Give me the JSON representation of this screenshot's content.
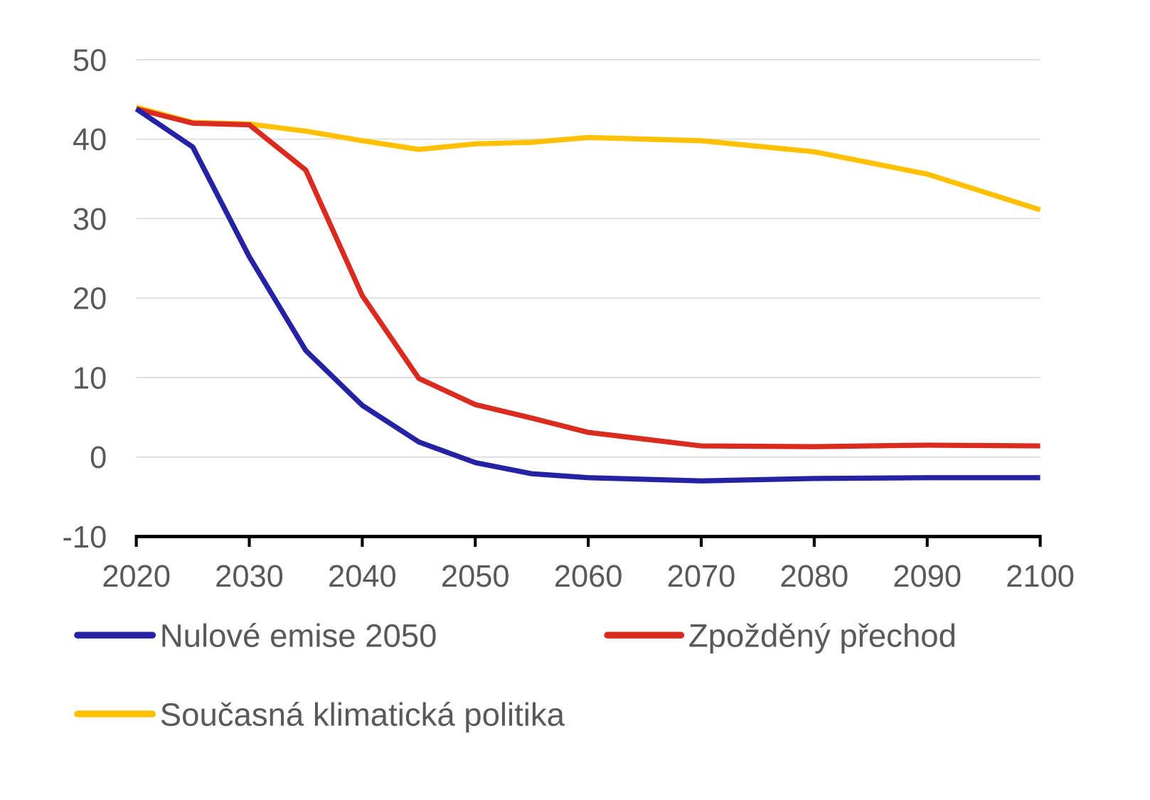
{
  "chart_data": {
    "type": "line",
    "title": "",
    "xlabel": "",
    "ylabel": "",
    "xlim": [
      2020,
      2100
    ],
    "ylim": [
      -10,
      50
    ],
    "yticks": [
      -10,
      0,
      10,
      20,
      30,
      40,
      50
    ],
    "xticks": [
      2020,
      2030,
      2040,
      2050,
      2060,
      2070,
      2080,
      2090,
      2100
    ],
    "grid": true,
    "legend_placement": "bottom",
    "x": [
      2020,
      2025,
      2030,
      2035,
      2040,
      2045,
      2050,
      2055,
      2060,
      2070,
      2080,
      2090,
      2100
    ],
    "series": [
      {
        "name": "Nulové emise 2050",
        "color": "#2622A4",
        "values": [
          43.8,
          39.0,
          25.2,
          13.4,
          6.5,
          1.9,
          -0.7,
          -2.1,
          -2.6,
          -3.0,
          -2.7,
          -2.6,
          -2.6
        ]
      },
      {
        "name": "Zpožděný přechod",
        "color": "#D92B1F",
        "values": [
          43.8,
          42.0,
          41.8,
          36.1,
          20.3,
          9.9,
          6.6,
          4.9,
          3.1,
          1.4,
          1.3,
          1.5,
          1.4
        ]
      },
      {
        "name": "Současná klimatická politika",
        "color": "#FFC000",
        "values": [
          44.0,
          42.1,
          41.9,
          41.0,
          39.8,
          38.7,
          39.4,
          39.6,
          40.2,
          39.8,
          38.4,
          35.6,
          31.1
        ]
      }
    ]
  }
}
